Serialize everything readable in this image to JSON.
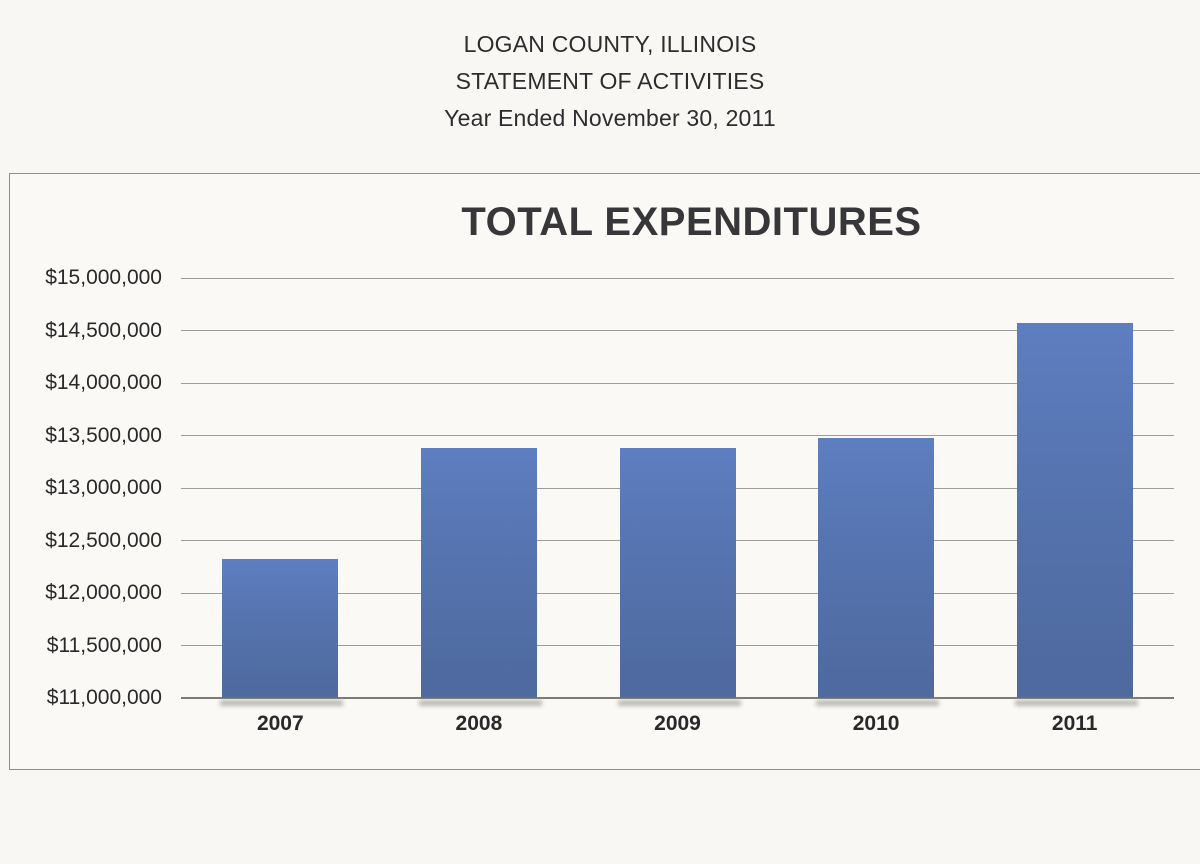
{
  "header": {
    "line1": "LOGAN COUNTY, ILLINOIS",
    "line2": "STATEMENT OF ACTIVITIES",
    "line3": "Year Ended November 30, 2011"
  },
  "chart_data": {
    "type": "bar",
    "title": "TOTAL EXPENDITURES",
    "categories": [
      "2007",
      "2008",
      "2009",
      "2010",
      "2011"
    ],
    "values": [
      12320000,
      13380000,
      13380000,
      13480000,
      14570000
    ],
    "xlabel": "",
    "ylabel": "",
    "ylim": [
      11000000,
      15000000
    ],
    "ytick_interval": 500000,
    "ytick_labels_top_to_bottom": [
      "$15,000,000",
      "$14,500,000",
      "$14,000,000",
      "$13,500,000",
      "$13,000,000",
      "$12,500,000",
      "$12,000,000",
      "$11,500,000",
      "$11,000,000"
    ],
    "grid": true,
    "legend": false,
    "bar_color": "#54719f",
    "gridline_color": "#9e9d98",
    "axis_color": "#7b7a76",
    "text_color": "#29292b"
  }
}
